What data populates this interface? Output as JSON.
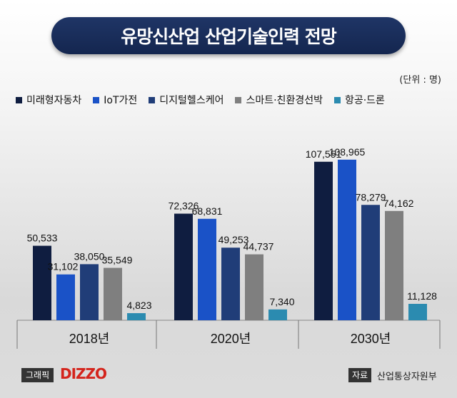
{
  "title": "유망신산업 산업기술인력 전망",
  "unit_label": "(단위 : 명)",
  "footer": {
    "graphic_label": "그래픽",
    "brand": "DIZZO",
    "source_label": "자료",
    "source_text": "산업통상자원부"
  },
  "colors": {
    "future_car": "#0f1d40",
    "iot": "#1a52c7",
    "digital_health": "#203d78",
    "smart_ship": "#7f7f7f",
    "drone": "#2b8bb0"
  },
  "chart_data": {
    "type": "bar",
    "title": "유망신산업 산업기술인력 전망",
    "xlabel": "",
    "ylabel": "명",
    "ylim": [
      0,
      120000
    ],
    "grid": false,
    "legend_position": "top",
    "categories": [
      "2018년",
      "2020년",
      "2030년"
    ],
    "series": [
      {
        "name": "미래형자동차",
        "color": "#0f1d40",
        "values": [
          50533,
          72326,
          107551
        ],
        "labels": [
          "50,533",
          "72,326",
          "107,551"
        ]
      },
      {
        "name": "IoT가전",
        "color": "#1a52c7",
        "values": [
          31102,
          68831,
          108965
        ],
        "labels": [
          "31,102",
          "68,831",
          "108,965"
        ]
      },
      {
        "name": "디지털헬스케어",
        "color": "#203d78",
        "values": [
          38050,
          49253,
          78279
        ],
        "labels": [
          "38,050",
          "49,253",
          "78,279"
        ]
      },
      {
        "name": "스마트·친환경선박",
        "color": "#7f7f7f",
        "values": [
          35549,
          44737,
          74162
        ],
        "labels": [
          "35,549",
          "44,737",
          "74,162"
        ]
      },
      {
        "name": "항공·드론",
        "color": "#2b8bb0",
        "values": [
          4823,
          7340,
          11128
        ],
        "labels": [
          "4,823",
          "7,340",
          "11,128"
        ]
      }
    ]
  }
}
